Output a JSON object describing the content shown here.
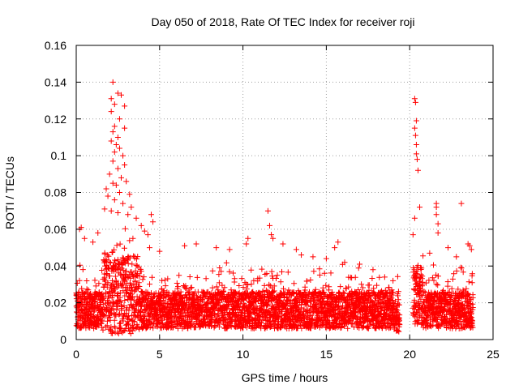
{
  "colors": {
    "series": "#ff0000",
    "axis": "#000000",
    "grid": "#a0a0a0",
    "background": "#ffffff"
  },
  "chart_data": {
    "type": "scatter",
    "title": "Day 050 of 2018, Rate Of TEC Index for receiver roji",
    "xlabel": "GPS time / hours",
    "ylabel": "ROTI / TECUs",
    "xlim": [
      0,
      25
    ],
    "ylim": [
      0,
      0.16
    ],
    "grid": true,
    "marker": "plus",
    "x_ticks": [
      0,
      5,
      10,
      15,
      20,
      25
    ],
    "x_tick_labels": [
      "0",
      "5",
      "10",
      "15",
      "20",
      "25"
    ],
    "y_ticks": [
      0,
      0.02,
      0.04,
      0.06,
      0.08,
      0.1,
      0.12,
      0.14,
      0.16
    ],
    "y_tick_labels": [
      "0",
      "0.02",
      "0.04",
      "0.06",
      "0.08",
      "0.1",
      "0.12",
      "0.14",
      "0.16"
    ],
    "series": [
      {
        "name": "ROTI",
        "data_gaps_hours": [
          [
            19.4,
            20.2
          ]
        ],
        "data_extent_hours": [
          0,
          23.8
        ],
        "notes": "Dense cloud of points; band mostly between 0.005 and 0.035 TECU/min with enhanced activity near 2-3.5 h and 20-20.5 h.",
        "points": [
          [
            2.2,
            0.14
          ],
          [
            2.5,
            0.134
          ],
          [
            2.7,
            0.133
          ],
          [
            2.1,
            0.131
          ],
          [
            2.3,
            0.128
          ],
          [
            2.9,
            0.127
          ],
          [
            2.1,
            0.124
          ],
          [
            2.6,
            0.12
          ],
          [
            2.3,
            0.116
          ],
          [
            2.9,
            0.115
          ],
          [
            2.2,
            0.113
          ],
          [
            2.5,
            0.11
          ],
          [
            2.1,
            0.108
          ],
          [
            2.4,
            0.106
          ],
          [
            2.6,
            0.104
          ],
          [
            2.3,
            0.102
          ],
          [
            2.8,
            0.1
          ],
          [
            2.2,
            0.097
          ],
          [
            2.9,
            0.095
          ],
          [
            2.5,
            0.093
          ],
          [
            2.0,
            0.09
          ],
          [
            2.7,
            0.088
          ],
          [
            3.0,
            0.086
          ],
          [
            2.2,
            0.085
          ],
          [
            2.4,
            0.084
          ],
          [
            1.8,
            0.082
          ],
          [
            2.6,
            0.08
          ],
          [
            3.2,
            0.079
          ],
          [
            1.9,
            0.078
          ],
          [
            2.3,
            0.076
          ],
          [
            2.8,
            0.074
          ],
          [
            3.3,
            0.072
          ],
          [
            1.7,
            0.071
          ],
          [
            2.1,
            0.07
          ],
          [
            2.5,
            0.069
          ],
          [
            3.1,
            0.068
          ],
          [
            3.6,
            0.066
          ],
          [
            4.5,
            0.068
          ],
          [
            4.6,
            0.064
          ],
          [
            0.2,
            0.06
          ],
          [
            0.3,
            0.061
          ],
          [
            1.3,
            0.058
          ],
          [
            3.9,
            0.062
          ],
          [
            4.1,
            0.059
          ],
          [
            4.3,
            0.057
          ],
          [
            0.5,
            0.055
          ],
          [
            1.0,
            0.053
          ],
          [
            3.4,
            0.055
          ],
          [
            4.4,
            0.05
          ],
          [
            5.0,
            0.048
          ],
          [
            6.5,
            0.051
          ],
          [
            7.2,
            0.052
          ],
          [
            8.4,
            0.05
          ],
          [
            9.2,
            0.049
          ],
          [
            10.2,
            0.052
          ],
          [
            10.3,
            0.055
          ],
          [
            11.5,
            0.07
          ],
          [
            11.6,
            0.062
          ],
          [
            11.7,
            0.057
          ],
          [
            11.8,
            0.055
          ],
          [
            12.4,
            0.052
          ],
          [
            13.2,
            0.049
          ],
          [
            13.5,
            0.046
          ],
          [
            14.2,
            0.045
          ],
          [
            15.0,
            0.044
          ],
          [
            15.5,
            0.05
          ],
          [
            15.7,
            0.053
          ],
          [
            16.1,
            0.042
          ],
          [
            17.0,
            0.041
          ],
          [
            17.8,
            0.038
          ],
          [
            18.5,
            0.034
          ],
          [
            19.0,
            0.032
          ],
          [
            20.3,
            0.131
          ],
          [
            20.35,
            0.129
          ],
          [
            20.4,
            0.119
          ],
          [
            20.3,
            0.115
          ],
          [
            20.35,
            0.111
          ],
          [
            20.4,
            0.106
          ],
          [
            20.4,
            0.101
          ],
          [
            20.45,
            0.098
          ],
          [
            20.5,
            0.092
          ],
          [
            20.6,
            0.072
          ],
          [
            20.3,
            0.066
          ],
          [
            20.2,
            0.057
          ],
          [
            21.6,
            0.074
          ],
          [
            21.6,
            0.072
          ],
          [
            21.6,
            0.068
          ],
          [
            21.7,
            0.063
          ],
          [
            21.7,
            0.058
          ],
          [
            23.1,
            0.074
          ],
          [
            23.5,
            0.052
          ],
          [
            23.6,
            0.051
          ],
          [
            22.3,
            0.05
          ],
          [
            22.8,
            0.045
          ],
          [
            23.7,
            0.049
          ],
          [
            21.2,
            0.047
          ]
        ]
      }
    ]
  }
}
